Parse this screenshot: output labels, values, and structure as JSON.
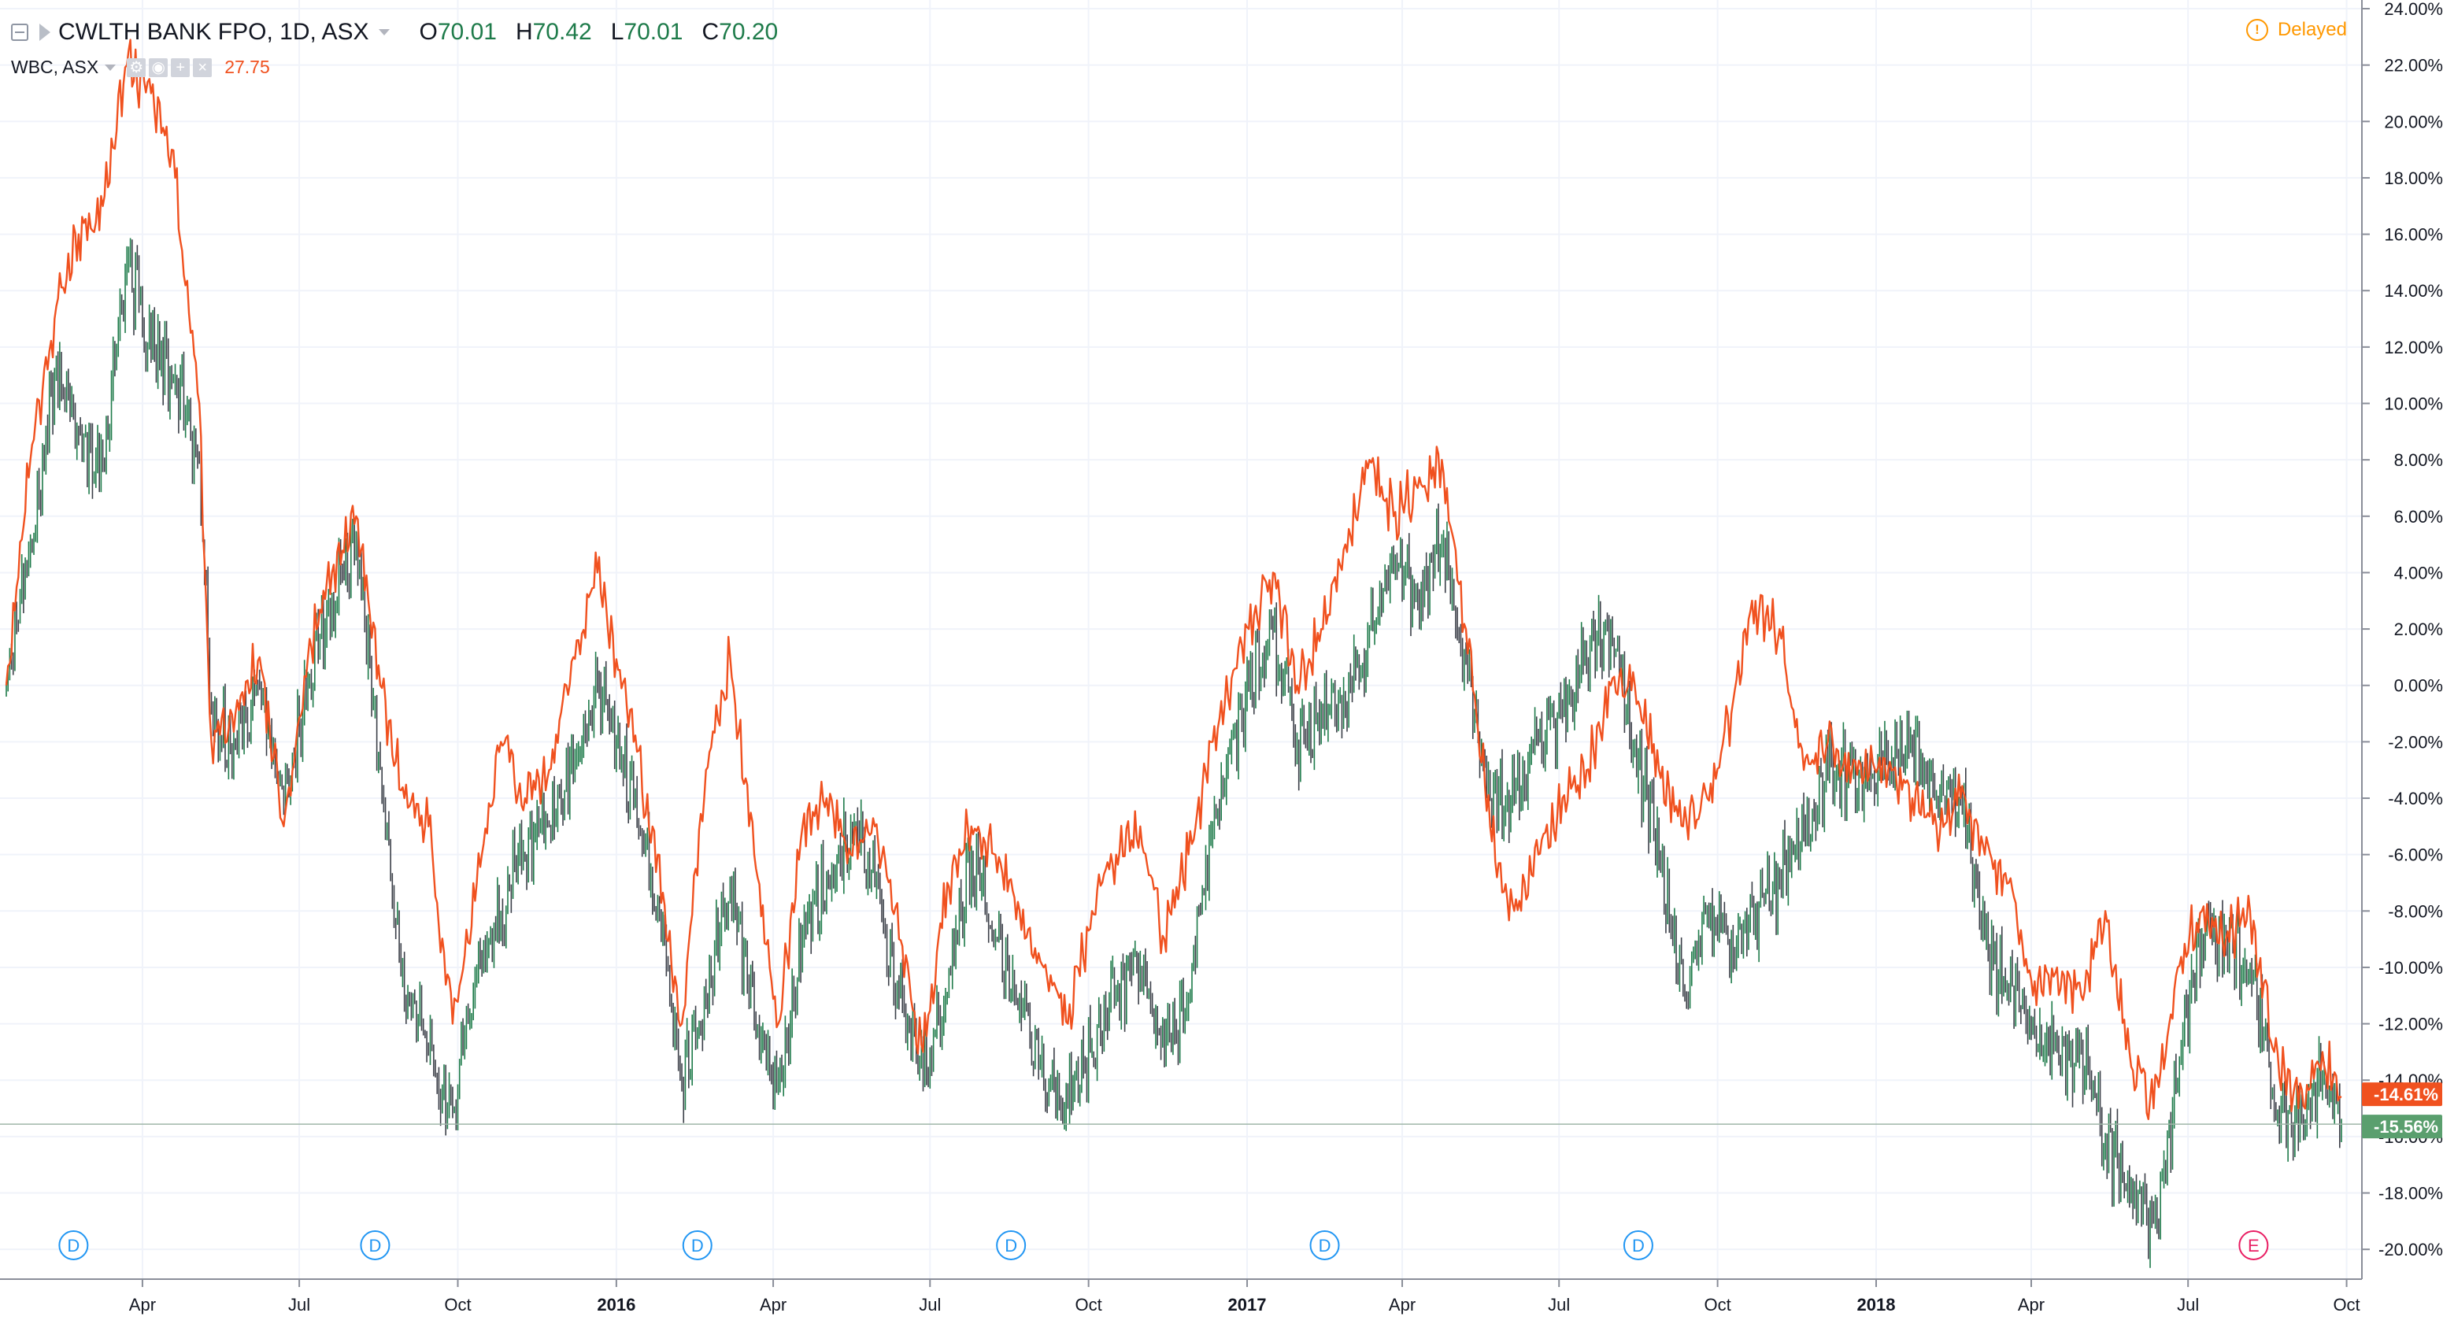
{
  "legend": {
    "main_symbol": "CWLTH BANK FPO, 1D, ASX",
    "o_label": "O",
    "o_value": "70.01",
    "h_label": "H",
    "h_value": "70.42",
    "l_label": "L",
    "l_value": "70.01",
    "c_label": "C",
    "c_value": "70.20",
    "compare_symbol": "WBC, ASX",
    "compare_value": "27.75"
  },
  "status": {
    "delayed_label": "Delayed"
  },
  "colors": {
    "cba_up": "#1e7b4a",
    "cba_down": "#3b3f48",
    "wbc_line": "#f0511f",
    "grid": "#f0f3fa",
    "axis_text": "#131722",
    "event_blue": "#2196f3",
    "event_pink": "#e91e63",
    "badge_red": "#f0511f",
    "badge_green": "#5a9f6e"
  },
  "chart_data": {
    "type": "line",
    "x_date_range": [
      "2015-01-12",
      "2018-09-28"
    ],
    "y_unit": "% change",
    "ylim": [
      -21,
      24
    ],
    "grid": true,
    "y_ticks": [
      "24.00%",
      "22.00%",
      "20.00%",
      "18.00%",
      "16.00%",
      "14.00%",
      "12.00%",
      "10.00%",
      "8.00%",
      "6.00%",
      "4.00%",
      "2.00%",
      "0.00%",
      "-2.00%",
      "-4.00%",
      "-6.00%",
      "-8.00%",
      "-10.00%",
      "-12.00%",
      "-14.00%",
      "-16.00%",
      "-18.00%",
      "-20.00%"
    ],
    "x_ticks": [
      {
        "label": "Apr",
        "date": "2015-04-01"
      },
      {
        "label": "Jul",
        "date": "2015-07-01"
      },
      {
        "label": "Oct",
        "date": "2015-10-01"
      },
      {
        "label": "2016",
        "date": "2016-01-01",
        "bold": true
      },
      {
        "label": "Apr",
        "date": "2016-04-01"
      },
      {
        "label": "Jul",
        "date": "2016-07-01"
      },
      {
        "label": "Oct",
        "date": "2016-10-01"
      },
      {
        "label": "2017",
        "date": "2017-01-01",
        "bold": true
      },
      {
        "label": "Apr",
        "date": "2017-04-01"
      },
      {
        "label": "Jul",
        "date": "2017-07-01"
      },
      {
        "label": "Oct",
        "date": "2017-10-01"
      },
      {
        "label": "2018",
        "date": "2018-01-01",
        "bold": true
      },
      {
        "label": "Apr",
        "date": "2018-04-01"
      },
      {
        "label": "Jul",
        "date": "2018-07-01"
      },
      {
        "label": "Oct",
        "date": "2018-10-01"
      }
    ],
    "series": [
      {
        "name": "CWLTH BANK FPO",
        "style": "ohlc-bars",
        "last_label": "-15.56%",
        "last_value": -15.56,
        "points": [
          [
            "2015-01-12",
            0
          ],
          [
            "2015-01-26",
            5
          ],
          [
            "2015-02-09",
            11
          ],
          [
            "2015-02-23",
            9
          ],
          [
            "2015-03-09",
            8
          ],
          [
            "2015-03-23",
            15
          ],
          [
            "2015-04-06",
            12
          ],
          [
            "2015-04-20",
            11
          ],
          [
            "2015-05-04",
            8
          ],
          [
            "2015-05-11",
            -1
          ],
          [
            "2015-05-25",
            -2
          ],
          [
            "2015-06-08",
            0
          ],
          [
            "2015-06-22",
            -4
          ],
          [
            "2015-07-06",
            0
          ],
          [
            "2015-07-20",
            3
          ],
          [
            "2015-08-03",
            5
          ],
          [
            "2015-08-17",
            -3
          ],
          [
            "2015-08-31",
            -11
          ],
          [
            "2015-09-14",
            -13
          ],
          [
            "2015-09-28",
            -15
          ],
          [
            "2015-10-12",
            -10
          ],
          [
            "2015-10-26",
            -8
          ],
          [
            "2015-11-09",
            -6
          ],
          [
            "2015-11-23",
            -5
          ],
          [
            "2015-12-07",
            -3
          ],
          [
            "2015-12-21",
            0
          ],
          [
            "2016-01-11",
            -4
          ],
          [
            "2016-01-25",
            -8
          ],
          [
            "2016-02-08",
            -14
          ],
          [
            "2016-02-22",
            -11
          ],
          [
            "2016-03-07",
            -7
          ],
          [
            "2016-03-21",
            -12
          ],
          [
            "2016-04-04",
            -14
          ],
          [
            "2016-04-18",
            -9
          ],
          [
            "2016-05-02",
            -7
          ],
          [
            "2016-05-16",
            -5
          ],
          [
            "2016-05-30",
            -7
          ],
          [
            "2016-06-13",
            -11
          ],
          [
            "2016-06-27",
            -14
          ],
          [
            "2016-07-11",
            -11
          ],
          [
            "2016-07-25",
            -6
          ],
          [
            "2016-08-08",
            -9
          ],
          [
            "2016-08-22",
            -11
          ],
          [
            "2016-09-05",
            -14
          ],
          [
            "2016-09-19",
            -15
          ],
          [
            "2016-10-03",
            -13
          ],
          [
            "2016-10-17",
            -11
          ],
          [
            "2016-10-31",
            -10
          ],
          [
            "2016-11-14",
            -13
          ],
          [
            "2016-11-28",
            -11
          ],
          [
            "2016-12-12",
            -5
          ],
          [
            "2017-01-02",
            0
          ],
          [
            "2017-01-16",
            2
          ],
          [
            "2017-01-30",
            -2
          ],
          [
            "2017-02-13",
            -1
          ],
          [
            "2017-02-27",
            -1
          ],
          [
            "2017-03-13",
            2
          ],
          [
            "2017-03-27",
            4
          ],
          [
            "2017-04-10",
            3
          ],
          [
            "2017-04-24",
            5
          ],
          [
            "2017-05-08",
            1
          ],
          [
            "2017-05-22",
            -4
          ],
          [
            "2017-06-05",
            -4
          ],
          [
            "2017-06-19",
            -2
          ],
          [
            "2017-07-03",
            -1
          ],
          [
            "2017-07-17",
            1
          ],
          [
            "2017-07-31",
            2
          ],
          [
            "2017-08-14",
            -2
          ],
          [
            "2017-08-28",
            -6
          ],
          [
            "2017-09-11",
            -11
          ],
          [
            "2017-09-25",
            -8
          ],
          [
            "2017-10-09",
            -9
          ],
          [
            "2017-10-23",
            -8
          ],
          [
            "2017-11-06",
            -7
          ],
          [
            "2017-11-20",
            -5
          ],
          [
            "2017-12-04",
            -3
          ],
          [
            "2017-12-18",
            -3
          ],
          [
            "2018-01-08",
            -3
          ],
          [
            "2018-01-22",
            -2
          ],
          [
            "2018-02-05",
            -4
          ],
          [
            "2018-02-19",
            -4
          ],
          [
            "2018-03-05",
            -9
          ],
          [
            "2018-03-19",
            -11
          ],
          [
            "2018-04-02",
            -12
          ],
          [
            "2018-04-16",
            -13
          ],
          [
            "2018-04-30",
            -13
          ],
          [
            "2018-05-14",
            -16
          ],
          [
            "2018-05-28",
            -18
          ],
          [
            "2018-06-11",
            -19
          ],
          [
            "2018-06-25",
            -14
          ],
          [
            "2018-07-09",
            -9
          ],
          [
            "2018-07-23",
            -9
          ],
          [
            "2018-08-06",
            -10
          ],
          [
            "2018-08-20",
            -15
          ],
          [
            "2018-09-03",
            -16
          ],
          [
            "2018-09-17",
            -14
          ],
          [
            "2018-09-28",
            -15.56
          ]
        ]
      },
      {
        "name": "WBC",
        "style": "line",
        "last_label": "-14.61%",
        "last_value": -14.61,
        "points": [
          [
            "2015-01-12",
            0
          ],
          [
            "2015-01-26",
            8
          ],
          [
            "2015-02-09",
            13
          ],
          [
            "2015-02-23",
            16
          ],
          [
            "2015-03-09",
            17
          ],
          [
            "2015-03-23",
            22
          ],
          [
            "2015-04-06",
            21
          ],
          [
            "2015-04-20",
            18
          ],
          [
            "2015-05-04",
            10
          ],
          [
            "2015-05-11",
            -2
          ],
          [
            "2015-05-25",
            -1
          ],
          [
            "2015-06-08",
            1
          ],
          [
            "2015-06-22",
            -5
          ],
          [
            "2015-07-06",
            1
          ],
          [
            "2015-07-20",
            4
          ],
          [
            "2015-08-03",
            6
          ],
          [
            "2015-08-17",
            0
          ],
          [
            "2015-08-31",
            -4
          ],
          [
            "2015-09-14",
            -5
          ],
          [
            "2015-09-28",
            -12
          ],
          [
            "2015-10-12",
            -7
          ],
          [
            "2015-10-26",
            -2
          ],
          [
            "2015-11-09",
            -4
          ],
          [
            "2015-11-23",
            -3
          ],
          [
            "2015-12-07",
            1
          ],
          [
            "2015-12-21",
            4
          ],
          [
            "2016-01-11",
            -2
          ],
          [
            "2016-01-25",
            -6
          ],
          [
            "2016-02-08",
            -12
          ],
          [
            "2016-02-22",
            -3
          ],
          [
            "2016-03-07",
            1
          ],
          [
            "2016-03-21",
            -6
          ],
          [
            "2016-04-04",
            -12
          ],
          [
            "2016-04-18",
            -5
          ],
          [
            "2016-05-02",
            -4
          ],
          [
            "2016-05-16",
            -6
          ],
          [
            "2016-05-30",
            -5
          ],
          [
            "2016-06-13",
            -9
          ],
          [
            "2016-06-27",
            -13
          ],
          [
            "2016-07-11",
            -7
          ],
          [
            "2016-07-25",
            -5
          ],
          [
            "2016-08-08",
            -6
          ],
          [
            "2016-08-22",
            -8
          ],
          [
            "2016-09-05",
            -10
          ],
          [
            "2016-09-19",
            -12
          ],
          [
            "2016-10-03",
            -8
          ],
          [
            "2016-10-17",
            -6
          ],
          [
            "2016-10-31",
            -5
          ],
          [
            "2016-11-14",
            -9
          ],
          [
            "2016-11-28",
            -6
          ],
          [
            "2016-12-12",
            -2
          ],
          [
            "2017-01-02",
            2
          ],
          [
            "2017-01-16",
            4
          ],
          [
            "2017-01-30",
            0
          ],
          [
            "2017-02-13",
            2
          ],
          [
            "2017-02-27",
            5
          ],
          [
            "2017-03-13",
            8
          ],
          [
            "2017-03-27",
            6
          ],
          [
            "2017-04-10",
            7
          ],
          [
            "2017-04-24",
            8
          ],
          [
            "2017-05-08",
            2
          ],
          [
            "2017-05-22",
            -5
          ],
          [
            "2017-06-05",
            -8
          ],
          [
            "2017-06-19",
            -6
          ],
          [
            "2017-07-03",
            -4
          ],
          [
            "2017-07-17",
            -3
          ],
          [
            "2017-07-31",
            0
          ],
          [
            "2017-08-14",
            0
          ],
          [
            "2017-08-28",
            -3
          ],
          [
            "2017-09-11",
            -5
          ],
          [
            "2017-09-25",
            -4
          ],
          [
            "2017-10-09",
            -1
          ],
          [
            "2017-10-23",
            3
          ],
          [
            "2017-11-06",
            2
          ],
          [
            "2017-11-20",
            -3
          ],
          [
            "2017-12-04",
            -2
          ],
          [
            "2017-12-18",
            -3
          ],
          [
            "2018-01-08",
            -3
          ],
          [
            "2018-01-22",
            -4
          ],
          [
            "2018-02-05",
            -5
          ],
          [
            "2018-02-19",
            -4
          ],
          [
            "2018-03-05",
            -6
          ],
          [
            "2018-03-19",
            -7
          ],
          [
            "2018-04-02",
            -11
          ],
          [
            "2018-04-16",
            -10
          ],
          [
            "2018-04-30",
            -11
          ],
          [
            "2018-05-14",
            -8
          ],
          [
            "2018-05-28",
            -13
          ],
          [
            "2018-06-11",
            -15
          ],
          [
            "2018-06-25",
            -10
          ],
          [
            "2018-07-09",
            -8
          ],
          [
            "2018-07-23",
            -9
          ],
          [
            "2018-08-06",
            -8
          ],
          [
            "2018-08-20",
            -13
          ],
          [
            "2018-09-03",
            -15
          ],
          [
            "2018-09-17",
            -13
          ],
          [
            "2018-09-28",
            -14.61
          ]
        ]
      }
    ],
    "events": [
      {
        "type": "D",
        "date": "2015-02-20"
      },
      {
        "type": "D",
        "date": "2015-08-14"
      },
      {
        "type": "D",
        "date": "2016-02-17"
      },
      {
        "type": "D",
        "date": "2016-08-17"
      },
      {
        "type": "D",
        "date": "2017-02-15"
      },
      {
        "type": "D",
        "date": "2017-08-16"
      },
      {
        "type": "E",
        "date": "2018-08-08"
      }
    ]
  }
}
